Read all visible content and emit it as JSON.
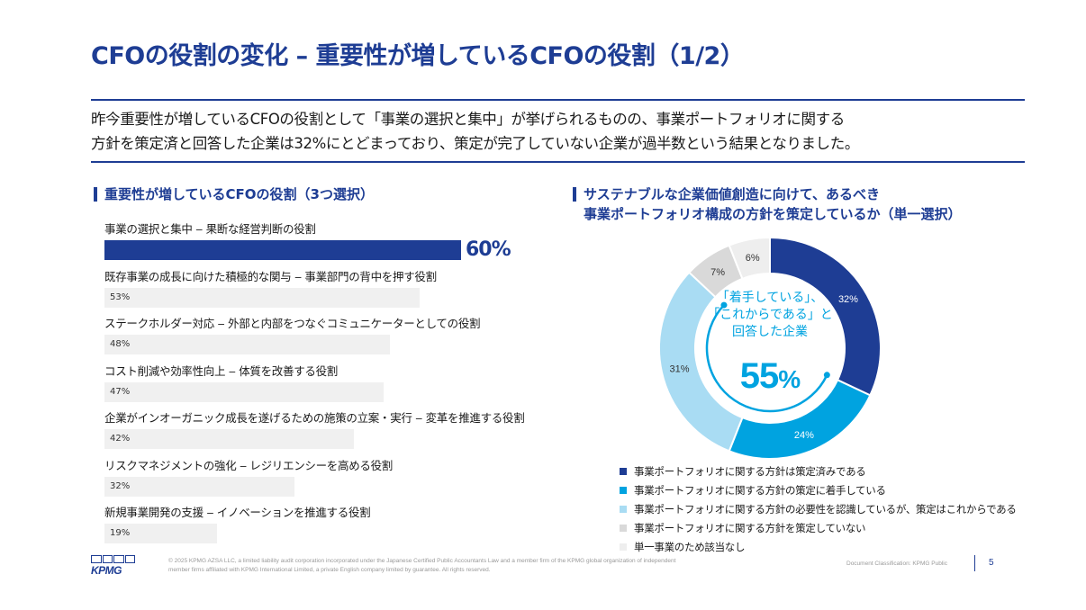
{
  "header": {
    "title": "CFOの役割の変化 – 重要性が増しているCFOの役割（1/2）",
    "lead_lines": [
      "昨今重要性が増しているCFOの役割として「事業の選択と集中」が挙げられるものの、事業ポートフォリオに関する",
      "方針を策定済と回答した企業は32%にとどまっており、策定が完了していない企業が過半数という結果となりました。"
    ]
  },
  "left_section": {
    "title": "重要性が増しているCFOの役割（3つ選択）"
  },
  "right_section": {
    "title_lines": [
      "サステナブルな企業価値創造に向けて、あるべき",
      "事業ポートフォリオ構成の方針を策定しているか（単一選択）"
    ],
    "center_text_lines": [
      "「着手している」、",
      "「これからである」と",
      "回答した企業"
    ],
    "center_value": "55",
    "center_unit": "%"
  },
  "colors": {
    "accent": "#1e3d94",
    "cyan": "#00a3e0",
    "bar_default": "#f0f0f0"
  },
  "chart_data": [
    {
      "type": "bar",
      "orientation": "horizontal",
      "categories": [
        "事業の選択と集中 ‒ 果断な経営判断の役割",
        "既存事業の成長に向けた積極的な関与 ‒ 事業部門の背中を押す役割",
        "ステークホルダー対応 ‒ 外部と内部をつなぐコミュニケーターとしての役割",
        "コスト削減や効率性向上 ‒ 体質を改善する役割",
        "企業がインオーガニック成長を遂げるための施策の立案・実行 ‒ 変革を推進する役割",
        "リスクマネジメントの強化 ‒ レジリエンシーを高める役割",
        "新規事業開発の支援 ‒ イノベーションを推進する役割"
      ],
      "values": [
        60,
        53,
        48,
        47,
        42,
        32,
        19
      ],
      "value_labels": [
        "60%",
        "53%",
        "48%",
        "47%",
        "42%",
        "32%",
        "19%"
      ],
      "highlight_index": 0,
      "xlim": [
        0,
        100
      ]
    },
    {
      "type": "pie",
      "style": "donut",
      "labels": [
        "事業ポートフォリオに関する方針は策定済みである",
        "事業ポートフォリオに関する方針の策定に着手している",
        "事業ポートフォリオに関する方針の必要性を認識しているが、策定はこれからである",
        "事業ポートフォリオに関する方針を策定していない",
        "単一事業のため該当なし"
      ],
      "values": [
        32,
        24,
        31,
        7,
        6
      ],
      "value_labels": [
        "32%",
        "24%",
        "31%",
        "7%",
        "6%"
      ],
      "colors": [
        "#1e3d94",
        "#00a3e0",
        "#a9dcf3",
        "#d9d9d9",
        "#eeeeee"
      ],
      "label_colors": [
        "#ffffff",
        "#ffffff",
        "#333333",
        "#333333",
        "#333333"
      ],
      "legend_position": "bottom"
    }
  ],
  "footer": {
    "logo_text": "KPMG",
    "copyright_lines": [
      "© 2025 KPMG AZSA LLC, a limited liability audit corporation incorporated under the Japanese Certified Public Accountants Law and a member firm of the KPMG global organization of independent",
      "member firms affiliated with KPMG International Limited, a private English company limited by guarantee. All rights reserved."
    ],
    "classification": "Document Classification: KPMG Public",
    "page_number": "5"
  }
}
